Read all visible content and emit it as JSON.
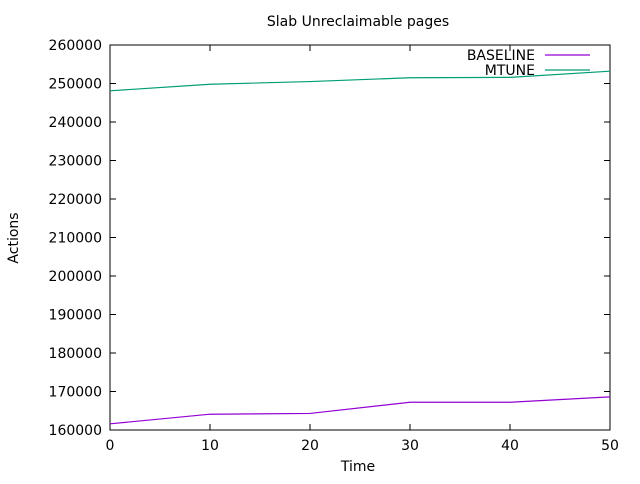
{
  "chart_data": {
    "type": "line",
    "title": "Slab Unreclaimable pages",
    "xlabel": "Time",
    "ylabel": "Actions",
    "xlim": [
      0,
      50
    ],
    "ylim": [
      160000,
      260000
    ],
    "xticks": [
      0,
      10,
      20,
      30,
      40,
      50
    ],
    "yticks": [
      160000,
      170000,
      180000,
      190000,
      200000,
      210000,
      220000,
      230000,
      240000,
      250000,
      260000
    ],
    "grid": false,
    "legend_position": "top-right",
    "x": [
      0,
      10,
      20,
      30,
      40,
      50
    ],
    "series": [
      {
        "name": "BASELINE",
        "color": "#9400d3",
        "values": [
          161600,
          164100,
          164300,
          167200,
          167200,
          168600
        ]
      },
      {
        "name": "MTUNE",
        "color": "#009e73",
        "values": [
          248100,
          249800,
          250500,
          251500,
          251600,
          253200
        ]
      }
    ]
  }
}
